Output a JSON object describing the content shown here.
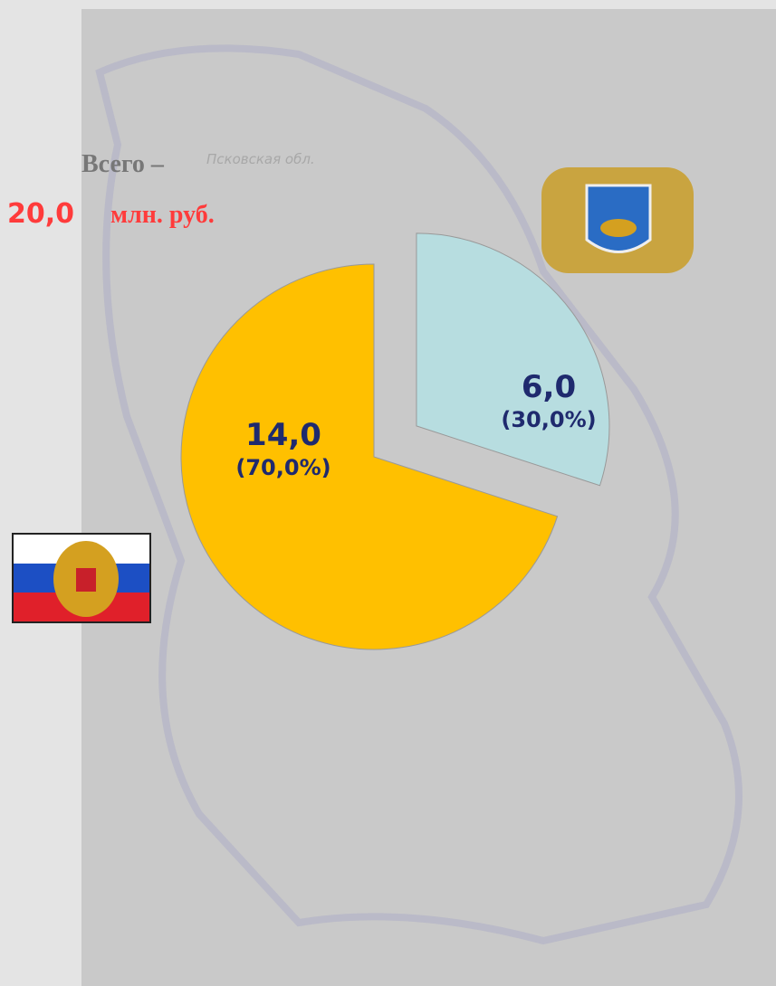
{
  "chart_data": {
    "type": "pie",
    "values": [
      14,
      6
    ],
    "value_labels": [
      "14,0",
      "6,0"
    ],
    "percentages": [
      70,
      30
    ],
    "percentage_labels": [
      "(70,0%)",
      "(30,0%)"
    ],
    "colors": [
      "#ffc000",
      "#b7dde0"
    ],
    "total_label": "Всего –",
    "total_value": 20,
    "total_value_label": "20,0",
    "total_unit": "млн. руб.",
    "map_label": "Псковская обл."
  }
}
